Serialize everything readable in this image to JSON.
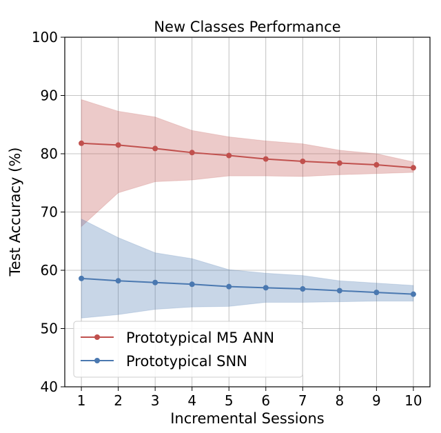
{
  "chart_data": {
    "type": "line",
    "title": "New Classes Performance",
    "xlabel": "Incremental Sessions",
    "ylabel": "Test Accuracy (%)",
    "x": [
      1,
      2,
      3,
      4,
      5,
      6,
      7,
      8,
      9,
      10
    ],
    "xlim": [
      0.55,
      10.45
    ],
    "ylim": [
      40,
      100
    ],
    "yticks": [
      40,
      50,
      60,
      70,
      80,
      90,
      100
    ],
    "grid": true,
    "legend_position": "lower-left",
    "series": [
      {
        "name": "Prototypical M5 ANN",
        "color": "#c0504d",
        "values": [
          81.8,
          81.5,
          80.9,
          80.2,
          79.7,
          79.1,
          78.7,
          78.4,
          78.1,
          77.6
        ],
        "upper": [
          89.3,
          87.3,
          86.3,
          84.0,
          82.9,
          82.2,
          81.7,
          80.6,
          80.0,
          78.6
        ],
        "lower": [
          67.5,
          73.3,
          75.2,
          75.5,
          76.2,
          76.2,
          76.1,
          76.4,
          76.6,
          76.8
        ]
      },
      {
        "name": "Prototypical SNN",
        "color": "#4a78b0",
        "values": [
          58.6,
          58.2,
          57.9,
          57.6,
          57.2,
          57.0,
          56.8,
          56.5,
          56.2,
          55.9
        ],
        "upper": [
          68.8,
          65.6,
          63.0,
          62.0,
          60.1,
          59.5,
          59.1,
          58.2,
          57.8,
          57.4
        ],
        "lower": [
          51.8,
          52.4,
          53.3,
          53.7,
          53.8,
          54.5,
          54.5,
          54.6,
          54.7,
          54.7
        ]
      }
    ]
  }
}
